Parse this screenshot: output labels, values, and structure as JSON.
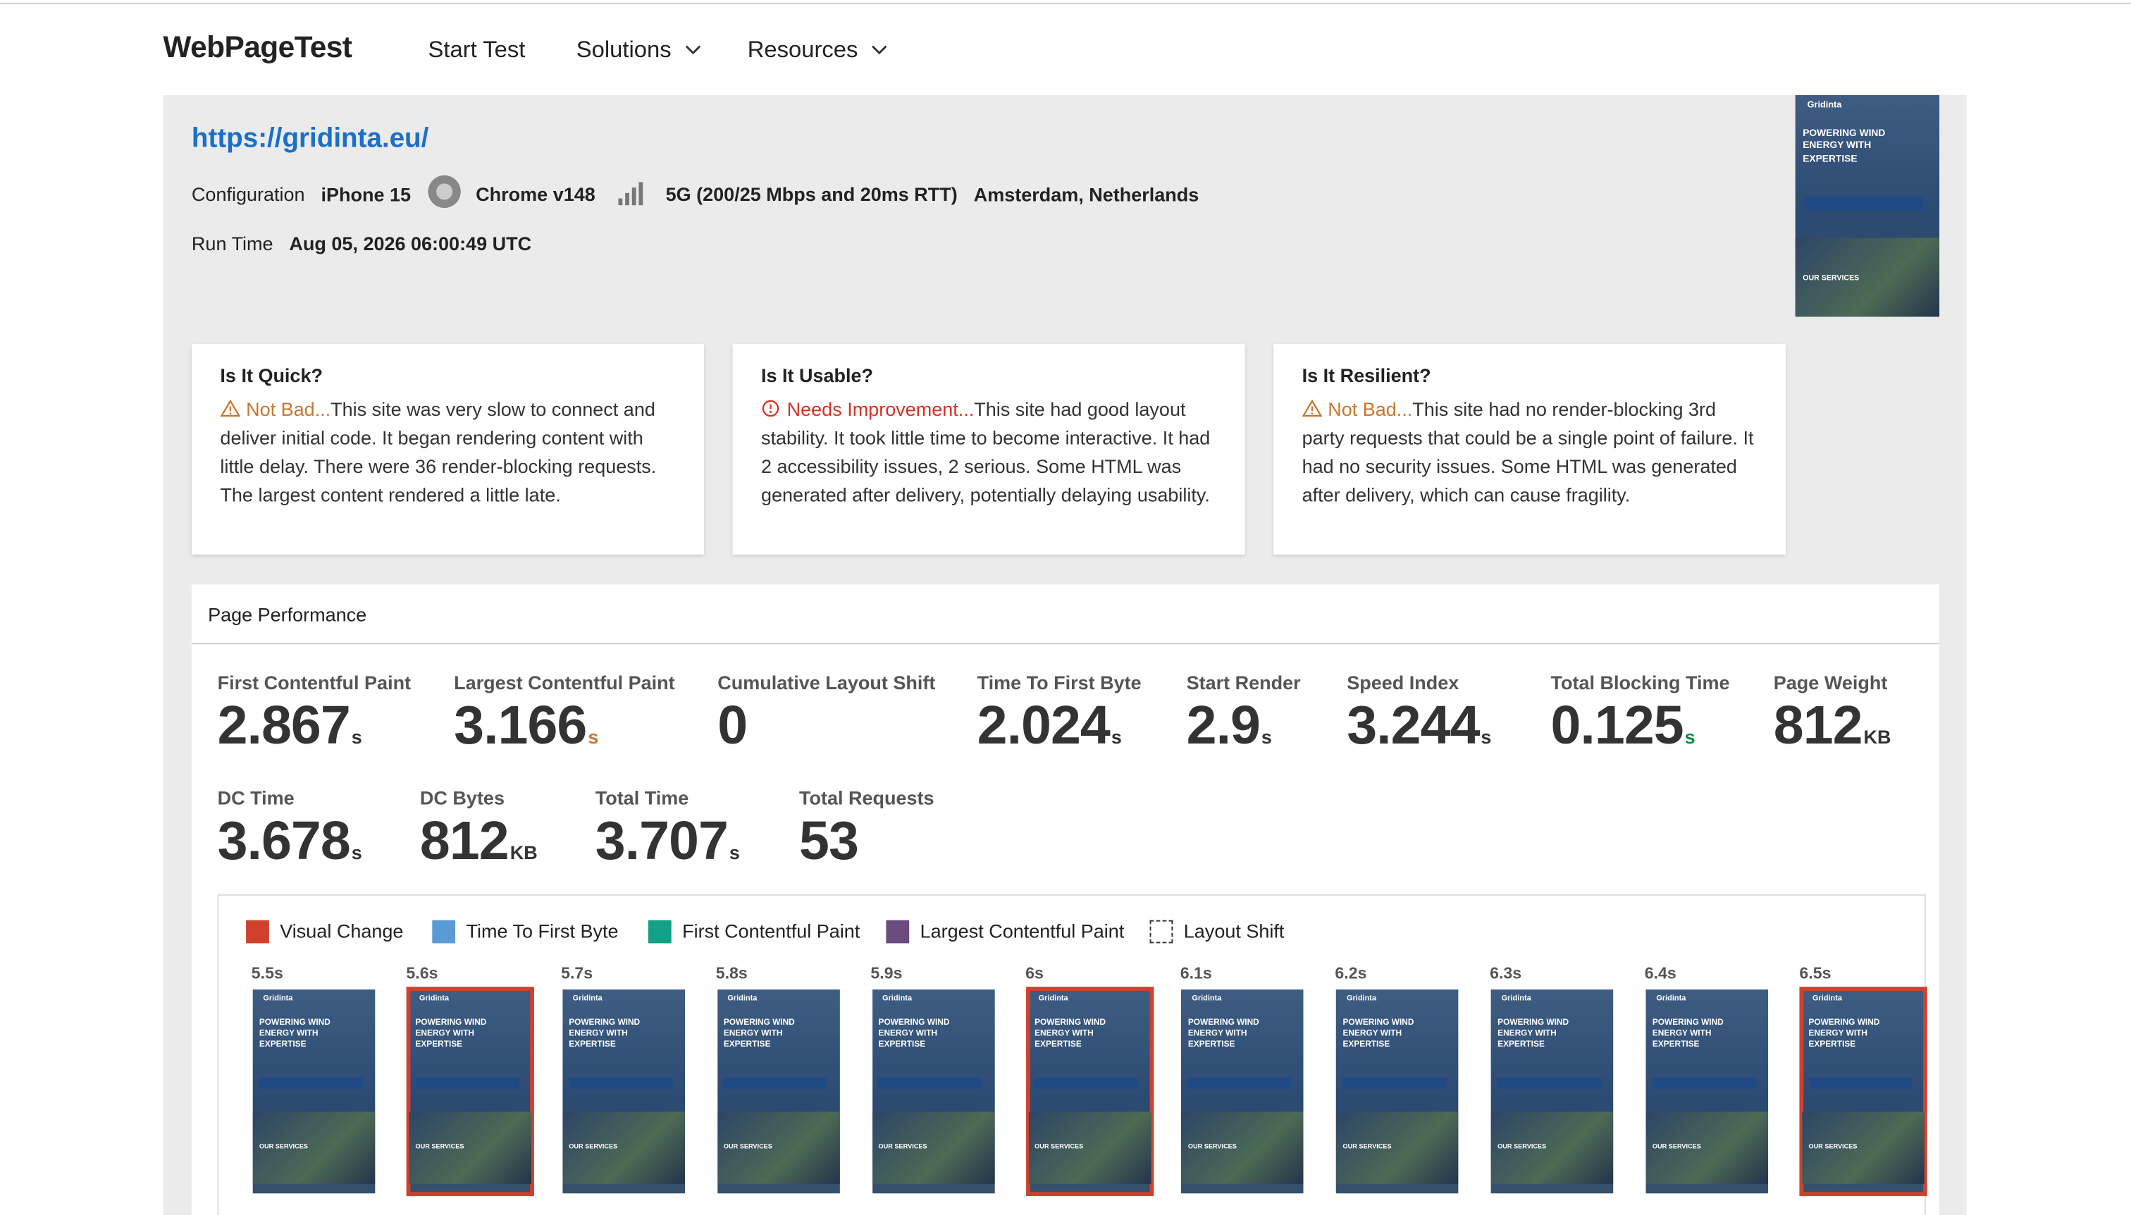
{
  "nav": {
    "logo": "WebPageTest",
    "links": [
      "Start Test",
      "Solutions",
      "Resources"
    ]
  },
  "header": {
    "url": "https://gridinta.eu/",
    "configuration_label": "Configuration",
    "device": "iPhone 15",
    "browser": "Chrome v148",
    "connection": "5G (200/25 Mbps and 20ms RTT)",
    "location": "Amsterdam, Netherlands",
    "run_time_label": "Run Time",
    "run_time": "Aug 05, 2026 06:00:49 UTC"
  },
  "cards": [
    {
      "title": "Is It Quick?",
      "status": "Not Bad...",
      "status_color": "#c9772d",
      "icon": "warning",
      "text": "This site was very slow to connect and deliver initial code. It began rendering content with little delay. There were 36 render-blocking requests. The largest content rendered a little late."
    },
    {
      "title": "Is It Usable?",
      "status": "Needs Improvement...",
      "status_color": "#d93025",
      "icon": "alert",
      "text": "This site had good layout stability. It took little time to become interactive. It had 2 accessibility issues, 2 serious. Some HTML was generated after delivery, potentially delaying usability."
    },
    {
      "title": "Is It Resilient?",
      "status": "Not Bad...",
      "status_color": "#c9772d",
      "icon": "warning",
      "text": "This site had no render-blocking 3rd party requests that could be a single point of failure. It had no security issues. Some HTML was generated after delivery, which can cause fragility."
    }
  ],
  "performance": {
    "title": "Page Performance",
    "metrics": [
      {
        "label": "First Contentful Paint",
        "value": "2.867",
        "unit": "s",
        "color": "#333333"
      },
      {
        "label": "Largest Contentful Paint",
        "value": "3.166",
        "unit": "s",
        "color": "#c9772d"
      },
      {
        "label": "Cumulative Layout Shift",
        "value": "0",
        "color": "#0f8a4a"
      },
      {
        "label": "Time To First Byte",
        "value": "2.024",
        "unit": "s",
        "color": "#333333"
      },
      {
        "label": "Start Render",
        "value": "2.9",
        "unit": "s",
        "color": "#333333"
      },
      {
        "label": "Speed Index",
        "value": "3.244",
        "unit": "s",
        "color": "#333333"
      },
      {
        "label": "Total Blocking Time",
        "value": "0.125",
        "unit": "s",
        "color": "#0f8a4a"
      },
      {
        "label": "Page Weight",
        "value": "812",
        "unit": "KB",
        "color": "#333333"
      },
      {
        "label": "DC Time",
        "value": "3.678",
        "unit": "s",
        "color": "#333333"
      },
      {
        "label": "DC Bytes",
        "value": "812",
        "unit": "KB",
        "color": "#333333"
      },
      {
        "label": "Total Time",
        "value": "3.707",
        "unit": "s",
        "color": "#333333"
      },
      {
        "label": "Total Requests",
        "value": "53",
        "color": "#333333"
      }
    ]
  },
  "legend": [
    {
      "name": "Visual Change",
      "color": "#d0412d"
    },
    {
      "name": "Time To First Byte",
      "color": "#5b9bd5"
    },
    {
      "name": "First Contentful Paint",
      "color": "#13a085"
    },
    {
      "name": "Largest Contentful Paint",
      "color": "#6b4a7d"
    },
    {
      "name": "Layout Shift",
      "border": "dashed"
    }
  ],
  "thumbnail": {
    "brand": "Gridinta",
    "heading": "POWERING WIND ENERGY WITH EXPERTISE",
    "section": "OUR SERVICES"
  },
  "frames": [
    {
      "label": "5.5s",
      "changed": false
    },
    {
      "label": "5.6s",
      "changed": true
    },
    {
      "label": "5.7s",
      "changed": false
    },
    {
      "label": "5.8s",
      "changed": false
    },
    {
      "label": "5.9s",
      "changed": false
    },
    {
      "label": "6s",
      "changed": true
    },
    {
      "label": "6.1s",
      "changed": false
    },
    {
      "label": "6.2s",
      "changed": false
    },
    {
      "label": "6.3s",
      "changed": false
    },
    {
      "label": "6.4s",
      "changed": false
    },
    {
      "label": "6.5s",
      "changed": true
    }
  ]
}
